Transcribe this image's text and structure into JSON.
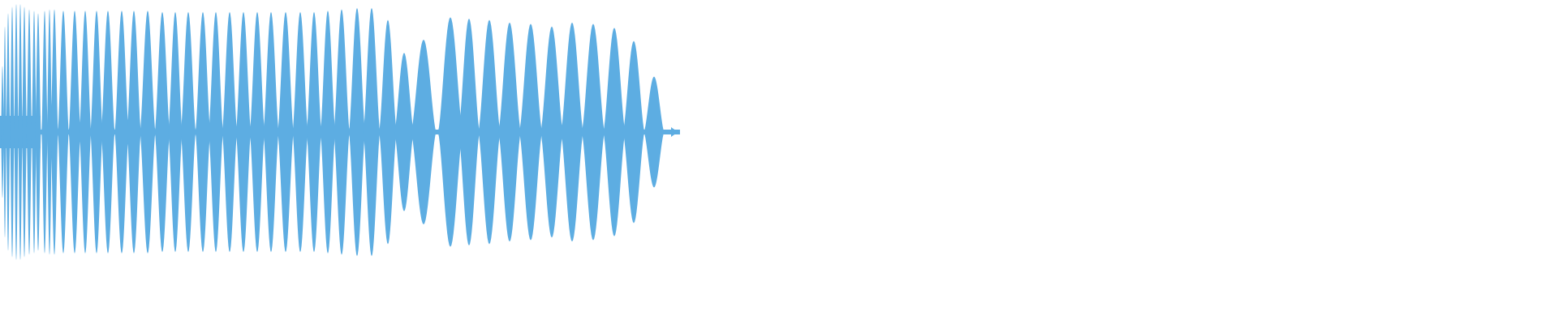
{
  "colors": {
    "waveform": "#5DADE2",
    "background": "#FFFFFF"
  },
  "chart_data": {
    "type": "area",
    "title": "",
    "xlabel": "",
    "ylabel": "",
    "ylim": [
      -1,
      1
    ],
    "grid": false,
    "legend": "none",
    "series": [
      {
        "lobe_peak_amplitudes": [
          0.5,
          0.8,
          0.9,
          0.95,
          0.97,
          0.97,
          0.95,
          0.93,
          0.92,
          0.9,
          0.92,
          0.93,
          0.93,
          0.92,
          0.92,
          0.92,
          0.92,
          0.92,
          0.92,
          0.92,
          0.92,
          0.91,
          0.91,
          0.91,
          0.91,
          0.91,
          0.91,
          0.91,
          0.91,
          0.91,
          0.91,
          0.91,
          0.91,
          0.92,
          0.93,
          0.94,
          0.94,
          0.85,
          0.6,
          0.7,
          0.87,
          0.86,
          0.85,
          0.83,
          0.82,
          0.8,
          0.83,
          0.82,
          0.79,
          0.69,
          0.42
        ]
      }
    ]
  }
}
